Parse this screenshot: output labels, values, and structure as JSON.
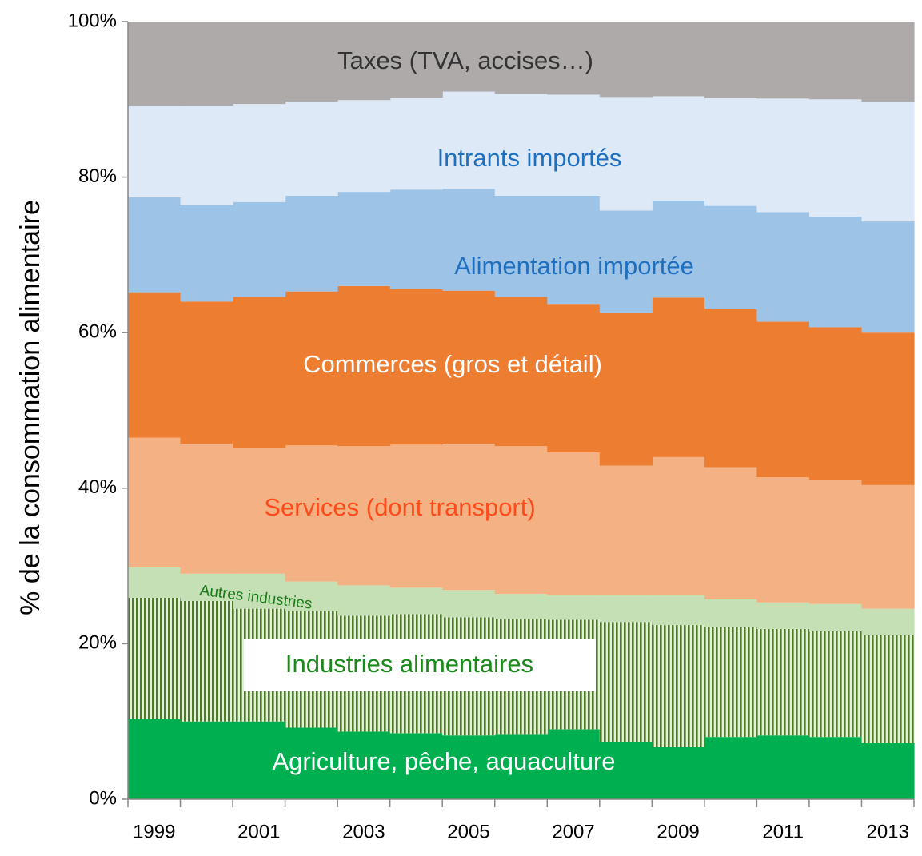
{
  "chart_data": {
    "type": "stacked_step_area",
    "y_label": "% de la consommation alimentaire",
    "categories": [
      "1999",
      null,
      "2001",
      null,
      "2003",
      null,
      "2005",
      null,
      "2007",
      null,
      "2009",
      null,
      "2011",
      null,
      "2013"
    ],
    "ylim": [
      0,
      100
    ],
    "yticks": [
      {
        "value": 0,
        "label": "0%"
      },
      {
        "value": 20,
        "label": "20%"
      },
      {
        "value": 40,
        "label": "40%"
      },
      {
        "value": 60,
        "label": "60%"
      },
      {
        "value": 80,
        "label": "80%"
      },
      {
        "value": 100,
        "label": "100%"
      }
    ],
    "series": [
      {
        "name": "Agriculture, pêche, aquaculture",
        "color": "#00b050",
        "values": [
          10.3,
          10.0,
          10.0,
          9.2,
          8.7,
          8.5,
          8.2,
          8.4,
          9.0,
          7.4,
          6.7,
          8.0,
          8.2,
          8.0,
          7.2
        ]
      },
      {
        "name": "Industries alimentaires",
        "color": "#4f7a28",
        "values": [
          15.6,
          15.5,
          14.5,
          15.0,
          14.9,
          15.3,
          15.2,
          14.8,
          14.1,
          15.4,
          15.7,
          14.1,
          13.7,
          13.6,
          13.9
        ]
      },
      {
        "name": "Autres industries",
        "color": "#c5e0b4",
        "values": [
          3.9,
          3.5,
          4.5,
          3.8,
          3.9,
          3.4,
          3.5,
          3.2,
          3.1,
          3.4,
          3.8,
          3.6,
          3.4,
          3.5,
          3.4
        ]
      },
      {
        "name": "Services (dont transport)",
        "color": "#f4b183",
        "values": [
          16.7,
          16.7,
          16.2,
          17.5,
          17.9,
          18.4,
          18.8,
          19.0,
          18.4,
          16.7,
          17.8,
          17.0,
          16.1,
          16.0,
          15.9
        ]
      },
      {
        "name": "Commerces (gros et détail)",
        "color": "#ed7d31",
        "values": [
          18.7,
          18.3,
          19.4,
          19.8,
          20.6,
          20.0,
          19.7,
          19.2,
          19.1,
          19.7,
          20.5,
          20.3,
          20.0,
          19.6,
          19.6
        ]
      },
      {
        "name": "Alimentation importée",
        "color": "#9dc3e6",
        "values": [
          12.2,
          12.4,
          12.2,
          12.3,
          12.1,
          12.8,
          13.1,
          13.0,
          13.9,
          13.1,
          12.5,
          13.3,
          14.1,
          14.2,
          14.3
        ]
      },
      {
        "name": "Intrants importés",
        "color": "#dde9f6",
        "values": [
          11.8,
          12.8,
          12.6,
          12.1,
          11.8,
          11.8,
          12.5,
          13.1,
          13.0,
          14.6,
          13.4,
          13.9,
          14.6,
          15.1,
          15.4
        ]
      },
      {
        "name": "Taxes (TVA, accises…)",
        "color": "#aeaaaa",
        "values": [
          10.8,
          10.8,
          10.6,
          10.3,
          10.1,
          9.8,
          9.0,
          9.3,
          9.4,
          9.7,
          9.6,
          9.8,
          9.9,
          10.0,
          10.3
        ]
      }
    ]
  }
}
